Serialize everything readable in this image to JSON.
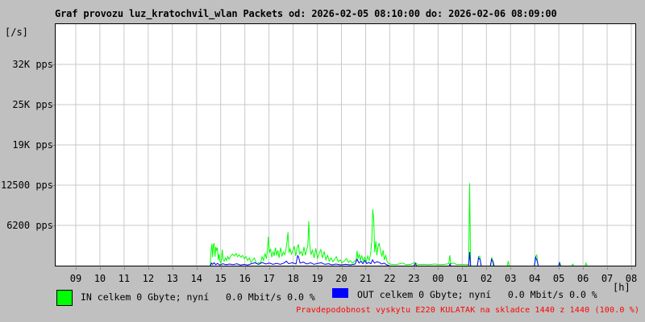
{
  "title": "Graf provozu luz_kratochvil_wlan Packets od: 2026-02-05 08:10:00 do: 2026-02-06 08:09:00",
  "colors": {
    "page_bg": "#c0c0c0",
    "plot_bg": "#ffffff",
    "grid": "#c9c9c9",
    "frame": "#000000",
    "in": "#00ff00",
    "out": "#0000ff",
    "warning": "#ff0000",
    "text": "#000000"
  },
  "legend": {
    "in_label": "IN celkem 0 Gbyte; nyní   0.0 Mbit/s 0.0 %",
    "out_label": "OUT celkem 0 Gbyte; nyní   0.0 Mbit/s 0.0 %"
  },
  "footer": {
    "warning": "Pravdepodobnost vyskytu E220 KULATAK na skladce 1440 z 1440 (100.0 %)"
  },
  "chart_data": {
    "type": "line",
    "title": "Graf provozu luz_kratochvil_wlan Packets od: 2026-02-05 08:10:00 do: 2026-02-06 08:09:00",
    "y_unit": "[/s]",
    "x_unit": "[h]",
    "grid": true,
    "legend_position": "bottom",
    "x_axis_hours_span": 24,
    "x_first_tick_offset_hours": 0.8333,
    "x_ticks": [
      "09",
      "10",
      "11",
      "12",
      "13",
      "14",
      "15",
      "16",
      "17",
      "18",
      "19",
      "20",
      "21",
      "22",
      "23",
      "00",
      "01",
      "02",
      "03",
      "04",
      "05",
      "06",
      "07",
      "08"
    ],
    "y_max": 37500,
    "y_ticks": [
      {
        "label": "32K pps",
        "value": 31250
      },
      {
        "label": "25K pps",
        "value": 25000
      },
      {
        "label": "19K pps",
        "value": 18750
      },
      {
        "label": "12500 pps",
        "value": 12500
      },
      {
        "label": "6200 pps",
        "value": 6250
      }
    ],
    "series": [
      {
        "name": "IN",
        "color": "#00ff00",
        "unit": "pps",
        "segments": [
          [
            [
              6.4,
              0
            ],
            [
              6.44,
              2500
            ],
            [
              6.47,
              3400
            ],
            [
              6.5,
              1300
            ],
            [
              6.53,
              3100
            ],
            [
              6.56,
              3500
            ],
            [
              6.6,
              1400
            ],
            [
              6.63,
              2900
            ],
            [
              6.67,
              2400
            ],
            [
              6.7,
              2800
            ],
            [
              6.73,
              900
            ],
            [
              6.77,
              1800
            ],
            [
              6.8,
              700
            ],
            [
              6.85,
              400
            ],
            [
              6.9,
              2500
            ],
            [
              6.93,
              1000
            ],
            [
              6.98,
              700
            ],
            [
              7.03,
              1200
            ],
            [
              7.08,
              800
            ],
            [
              7.13,
              1400
            ],
            [
              7.18,
              1000
            ],
            [
              7.25,
              1500
            ],
            [
              7.32,
              1800
            ],
            [
              7.4,
              1500
            ],
            [
              7.47,
              1900
            ],
            [
              7.53,
              1400
            ],
            [
              7.6,
              1700
            ],
            [
              7.67,
              1300
            ],
            [
              7.74,
              1600
            ],
            [
              7.81,
              1100
            ],
            [
              7.88,
              1400
            ],
            [
              7.95,
              800
            ],
            [
              8.02,
              1200
            ],
            [
              8.09,
              500
            ],
            [
              8.16,
              900
            ],
            [
              8.23,
              1200
            ],
            [
              8.3,
              400
            ],
            [
              8.36,
              300
            ],
            [
              8.42,
              500
            ],
            [
              8.48,
              300
            ],
            [
              8.55,
              1400
            ],
            [
              8.61,
              800
            ],
            [
              8.67,
              1900
            ],
            [
              8.73,
              1100
            ],
            [
              8.77,
              2400
            ],
            [
              8.81,
              4500
            ],
            [
              8.85,
              2000
            ],
            [
              8.9,
              2600
            ],
            [
              8.95,
              1300
            ],
            [
              9.0,
              2200
            ],
            [
              9.05,
              1500
            ],
            [
              9.1,
              2800
            ],
            [
              9.15,
              1600
            ],
            [
              9.2,
              2400
            ],
            [
              9.25,
              1200
            ],
            [
              9.31,
              2800
            ],
            [
              9.37,
              1500
            ],
            [
              9.43,
              2100
            ],
            [
              9.49,
              1700
            ],
            [
              9.54,
              2600
            ],
            [
              9.58,
              3700
            ],
            [
              9.62,
              5200
            ],
            [
              9.66,
              2000
            ],
            [
              9.71,
              2600
            ],
            [
              9.76,
              1800
            ],
            [
              9.82,
              2300
            ],
            [
              9.88,
              3000
            ],
            [
              9.94,
              1500
            ],
            [
              10.0,
              2800
            ],
            [
              10.05,
              3300
            ],
            [
              10.1,
              1800
            ],
            [
              10.16,
              2200
            ],
            [
              10.22,
              1500
            ],
            [
              10.28,
              2900
            ],
            [
              10.34,
              1600
            ],
            [
              10.4,
              2600
            ],
            [
              10.44,
              3200
            ],
            [
              10.48,
              6900
            ],
            [
              10.52,
              3200
            ],
            [
              10.57,
              1700
            ],
            [
              10.63,
              2400
            ],
            [
              10.7,
              1200
            ],
            [
              10.77,
              2700
            ],
            [
              10.84,
              1100
            ],
            [
              10.91,
              1900
            ],
            [
              10.98,
              2500
            ],
            [
              11.05,
              1200
            ],
            [
              11.12,
              2200
            ],
            [
              11.19,
              900
            ],
            [
              11.26,
              1600
            ],
            [
              11.33,
              700
            ],
            [
              11.4,
              1200
            ],
            [
              11.48,
              600
            ],
            [
              11.55,
              1000
            ],
            [
              11.62,
              1400
            ],
            [
              11.7,
              600
            ],
            [
              11.78,
              900
            ],
            [
              11.86,
              450
            ],
            [
              11.95,
              700
            ],
            [
              12.04,
              1100
            ],
            [
              12.12,
              500
            ],
            [
              12.2,
              800
            ],
            [
              12.28,
              400
            ],
            [
              12.36,
              600
            ],
            [
              12.44,
              900
            ],
            [
              12.48,
              2300
            ],
            [
              12.52,
              1100
            ],
            [
              12.57,
              1800
            ],
            [
              12.62,
              800
            ],
            [
              12.67,
              1600
            ],
            [
              12.73,
              700
            ],
            [
              12.79,
              1300
            ],
            [
              12.86,
              550
            ],
            [
              12.92,
              1500
            ],
            [
              12.98,
              800
            ],
            [
              13.04,
              1900
            ],
            [
              13.09,
              4000
            ],
            [
              13.13,
              8750
            ],
            [
              13.17,
              7000
            ],
            [
              13.21,
              2100
            ],
            [
              13.26,
              3800
            ],
            [
              13.3,
              1600
            ],
            [
              13.35,
              3000
            ],
            [
              13.4,
              3500
            ],
            [
              13.45,
              2200
            ],
            [
              13.51,
              1500
            ],
            [
              13.56,
              2400
            ],
            [
              13.61,
              900
            ],
            [
              13.67,
              1600
            ],
            [
              13.72,
              700
            ],
            [
              13.78,
              350
            ],
            [
              13.9,
              200
            ],
            [
              14.05,
              150
            ],
            [
              14.2,
              250
            ],
            [
              14.38,
              400
            ],
            [
              14.5,
              150
            ],
            [
              14.7,
              200
            ],
            [
              14.88,
              500
            ],
            [
              15.0,
              150
            ],
            [
              15.2,
              200
            ],
            [
              15.45,
              150
            ],
            [
              15.7,
              250
            ],
            [
              15.9,
              150
            ],
            [
              16.1,
              200
            ],
            [
              16.28,
              300
            ],
            [
              16.32,
              1600
            ],
            [
              16.36,
              300
            ],
            [
              16.5,
              400
            ],
            [
              16.6,
              150
            ],
            [
              16.8,
              200
            ],
            [
              17.0,
              150
            ],
            [
              17.1,
              200
            ],
            [
              17.14,
              12800
            ],
            [
              17.18,
              0
            ]
          ],
          [
            [
              17.46,
              0
            ],
            [
              17.51,
              1400
            ],
            [
              17.56,
              1500
            ],
            [
              17.61,
              0
            ]
          ],
          [
            [
              18.01,
              0
            ],
            [
              18.06,
              1300
            ],
            [
              18.12,
              0
            ]
          ],
          [
            [
              18.7,
              0
            ],
            [
              18.74,
              700
            ],
            [
              18.78,
              0
            ]
          ],
          [
            [
              19.83,
              0
            ],
            [
              19.88,
              1500
            ],
            [
              19.92,
              1650
            ],
            [
              19.97,
              0
            ]
          ],
          [
            [
              20.83,
              0
            ],
            [
              20.87,
              600
            ],
            [
              20.91,
              0
            ]
          ],
          [
            [
              21.37,
              0
            ],
            [
              21.41,
              250
            ],
            [
              21.45,
              0
            ]
          ],
          [
            [
              21.92,
              0
            ],
            [
              21.96,
              400
            ],
            [
              22.0,
              0
            ]
          ]
        ]
      },
      {
        "name": "OUT",
        "color": "#0000ff",
        "unit": "pps",
        "segments": [
          [
            [
              6.42,
              0
            ],
            [
              6.45,
              400
            ],
            [
              6.5,
              200
            ],
            [
              6.56,
              450
            ],
            [
              6.63,
              150
            ],
            [
              6.7,
              350
            ],
            [
              6.8,
              100
            ],
            [
              6.93,
              300
            ],
            [
              7.05,
              150
            ],
            [
              7.2,
              250
            ],
            [
              7.35,
              150
            ],
            [
              7.5,
              300
            ],
            [
              7.65,
              100
            ],
            [
              7.8,
              200
            ],
            [
              7.95,
              100
            ],
            [
              8.1,
              300
            ],
            [
              8.25,
              450
            ],
            [
              8.4,
              200
            ],
            [
              8.55,
              500
            ],
            [
              8.7,
              250
            ],
            [
              8.85,
              400
            ],
            [
              9.0,
              200
            ],
            [
              9.15,
              350
            ],
            [
              9.3,
              200
            ],
            [
              9.45,
              400
            ],
            [
              9.55,
              700
            ],
            [
              9.65,
              300
            ],
            [
              9.8,
              450
            ],
            [
              9.95,
              250
            ],
            [
              10.02,
              1550
            ],
            [
              10.06,
              1300
            ],
            [
              10.12,
              400
            ],
            [
              10.25,
              550
            ],
            [
              10.4,
              250
            ],
            [
              10.55,
              450
            ],
            [
              10.7,
              200
            ],
            [
              10.85,
              350
            ],
            [
              11.0,
              450
            ],
            [
              11.15,
              200
            ],
            [
              11.3,
              300
            ],
            [
              11.45,
              120
            ],
            [
              11.6,
              250
            ],
            [
              11.8,
              120
            ],
            [
              12.0,
              200
            ],
            [
              12.2,
              120
            ],
            [
              12.4,
              250
            ],
            [
              12.48,
              1000
            ],
            [
              12.56,
              400
            ],
            [
              12.64,
              700
            ],
            [
              12.72,
              300
            ],
            [
              12.8,
              800
            ],
            [
              12.88,
              300
            ],
            [
              12.96,
              500
            ],
            [
              13.05,
              300
            ],
            [
              13.12,
              900
            ],
            [
              13.2,
              400
            ],
            [
              13.3,
              600
            ],
            [
              13.4,
              500
            ],
            [
              13.5,
              250
            ],
            [
              13.6,
              400
            ],
            [
              13.7,
              150
            ],
            [
              13.8,
              0
            ]
          ],
          [
            [
              14.84,
              0
            ],
            [
              14.89,
              350
            ],
            [
              14.94,
              0
            ]
          ],
          [
            [
              16.3,
              0
            ],
            [
              16.33,
              250
            ],
            [
              16.36,
              0
            ]
          ],
          [
            [
              17.1,
              0
            ],
            [
              17.14,
              2100
            ],
            [
              17.18,
              0
            ]
          ],
          [
            [
              17.46,
              0
            ],
            [
              17.51,
              1250
            ],
            [
              17.57,
              950
            ],
            [
              17.62,
              0
            ]
          ],
          [
            [
              18.0,
              0
            ],
            [
              18.05,
              1000
            ],
            [
              18.11,
              650
            ],
            [
              18.15,
              0
            ]
          ],
          [
            [
              19.82,
              0
            ],
            [
              19.87,
              1300
            ],
            [
              19.93,
              800
            ],
            [
              19.98,
              0
            ]
          ],
          [
            [
              20.82,
              0
            ],
            [
              20.86,
              400
            ],
            [
              20.9,
              0
            ]
          ]
        ]
      }
    ]
  }
}
